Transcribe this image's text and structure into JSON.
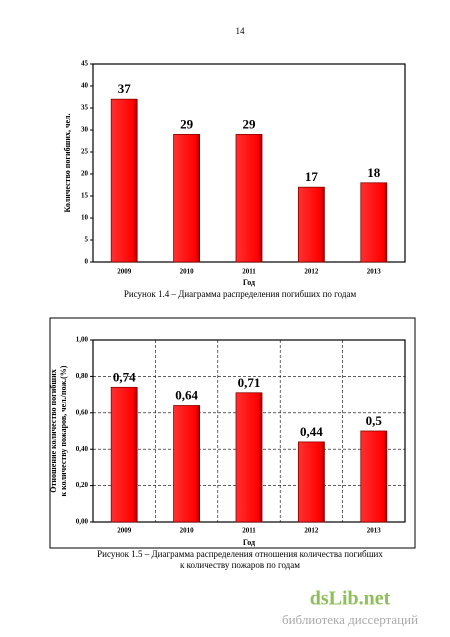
{
  "page_number": "14",
  "chart_data": [
    {
      "type": "bar",
      "categories": [
        "2009",
        "2010",
        "2011",
        "2012",
        "2013"
      ],
      "values": [
        37,
        29,
        29,
        17,
        18
      ],
      "color": "#ff0000",
      "ylim": [
        0,
        45
      ],
      "yticks": [
        0,
        5,
        10,
        15,
        20,
        25,
        30,
        35,
        40,
        45
      ],
      "grid": false,
      "ylabel": [
        "Количество погибших, чел."
      ],
      "xlabel": "Год",
      "caption": [
        "Рисунок 1.4 – Диаграмма распределения погибших по годам"
      ]
    },
    {
      "type": "bar",
      "categories": [
        "2009",
        "2010",
        "2011",
        "2012",
        "2013"
      ],
      "values": [
        0.74,
        0.64,
        0.71,
        0.44,
        0.5
      ],
      "value_labels": [
        "0,74",
        "0,64",
        "0,71",
        "0,44",
        "0,5"
      ],
      "color": "#ff0000",
      "ylim": [
        0,
        1.0
      ],
      "yticks": [
        {
          "value": 0,
          "label": "0,00"
        },
        {
          "value": 0.2,
          "label": "0,20"
        },
        {
          "value": 0.4,
          "label": "0,40"
        },
        {
          "value": 0.6,
          "label": "0,60"
        },
        {
          "value": 0.8,
          "label": "0,80"
        },
        {
          "value": 1.0,
          "label": "1,00"
        }
      ],
      "grid": true,
      "ylabel": [
        "Отношение количество погибших",
        "к количеству пожаров, чел./пож.(%)"
      ],
      "xlabel": "Год",
      "caption": [
        "Рисунок 1.5 – Диаграмма распределения отношения количества погибших",
        "к количеству пожаров по годам"
      ]
    }
  ],
  "watermark": {
    "logo": "dsLib.net",
    "tagline": "библиотека диссертаций"
  }
}
